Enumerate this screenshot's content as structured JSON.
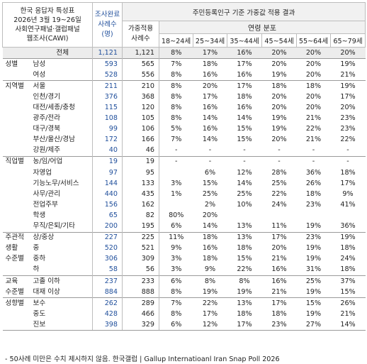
{
  "header": {
    "survey_lines": [
      "한국 응답자 특성표",
      "2026년 3월 19~26일",
      "사회연구패널·갤럽패널",
      "웹조사(CAWI)"
    ],
    "n_lines": [
      "조사완료",
      "사례수",
      "(명)"
    ],
    "weighted_lines": [
      "가중적용",
      "사례수"
    ],
    "title": "주민등록인구 기준 가중값 적용 결과",
    "subtitle": "연령 분포",
    "age_groups": [
      "18~24세",
      "25~34세",
      "35~44세",
      "45~54세",
      "55~64세",
      "65~79세"
    ]
  },
  "rows": [
    {
      "g": "",
      "s": "전체",
      "n": "1,121",
      "w": "1,121",
      "p": [
        "8%",
        "17%",
        "16%",
        "20%",
        "20%",
        "20%"
      ]
    },
    {
      "g": "성별",
      "s": "남성",
      "n": "593",
      "w": "565",
      "p": [
        "7%",
        "18%",
        "17%",
        "20%",
        "20%",
        "19%"
      ]
    },
    {
      "g": "",
      "s": "여성",
      "n": "528",
      "w": "556",
      "p": [
        "8%",
        "16%",
        "16%",
        "19%",
        "20%",
        "21%"
      ]
    },
    {
      "g": "지역별",
      "s": "서울",
      "n": "211",
      "w": "210",
      "p": [
        "8%",
        "20%",
        "17%",
        "18%",
        "18%",
        "19%"
      ]
    },
    {
      "g": "",
      "s": "인천/경기",
      "n": "376",
      "w": "368",
      "p": [
        "8%",
        "17%",
        "18%",
        "20%",
        "20%",
        "17%"
      ]
    },
    {
      "g": "",
      "s": "대전/세종/충청",
      "n": "115",
      "w": "120",
      "p": [
        "8%",
        "16%",
        "16%",
        "20%",
        "20%",
        "20%"
      ]
    },
    {
      "g": "",
      "s": "광주/전라",
      "n": "108",
      "w": "105",
      "p": [
        "8%",
        "14%",
        "14%",
        "19%",
        "21%",
        "23%"
      ]
    },
    {
      "g": "",
      "s": "대구/경북",
      "n": "99",
      "w": "106",
      "p": [
        "5%",
        "16%",
        "15%",
        "19%",
        "22%",
        "23%"
      ]
    },
    {
      "g": "",
      "s": "부산/울산/경남",
      "n": "172",
      "w": "166",
      "p": [
        "7%",
        "14%",
        "15%",
        "20%",
        "21%",
        "22%"
      ]
    },
    {
      "g": "",
      "s": "강원/제주",
      "n": "40",
      "w": "46",
      "p": [
        "-",
        "-",
        "-",
        "-",
        "-",
        "-"
      ]
    },
    {
      "g": "직업별",
      "s": "농/임/어업",
      "n": "19",
      "w": "19",
      "p": [
        "-",
        "-",
        "-",
        "-",
        "-",
        "-"
      ]
    },
    {
      "g": "",
      "s": "자영업",
      "n": "97",
      "w": "95",
      "p": [
        "",
        "6%",
        "12%",
        "28%",
        "36%",
        "18%"
      ]
    },
    {
      "g": "",
      "s": "기능노무/서비스",
      "n": "144",
      "w": "133",
      "p": [
        "3%",
        "15%",
        "14%",
        "25%",
        "26%",
        "17%"
      ]
    },
    {
      "g": "",
      "s": "사무/관리",
      "n": "440",
      "w": "435",
      "p": [
        "1%",
        "25%",
        "25%",
        "22%",
        "18%",
        "9%"
      ]
    },
    {
      "g": "",
      "s": "전업주부",
      "n": "156",
      "w": "162",
      "p": [
        "",
        "2%",
        "10%",
        "24%",
        "23%",
        "41%"
      ]
    },
    {
      "g": "",
      "s": "학생",
      "n": "65",
      "w": "82",
      "p": [
        "80%",
        "20%",
        "",
        "",
        "",
        ""
      ]
    },
    {
      "g": "",
      "s": "무직/은퇴/기타",
      "n": "200",
      "w": "195",
      "p": [
        "6%",
        "14%",
        "13%",
        "11%",
        "19%",
        "36%"
      ]
    },
    {
      "g": "주관적",
      "s": "상/중상",
      "n": "227",
      "w": "225",
      "p": [
        "11%",
        "18%",
        "13%",
        "17%",
        "23%",
        "19%"
      ]
    },
    {
      "g": "생활",
      "s": "중",
      "n": "520",
      "w": "521",
      "p": [
        "9%",
        "16%",
        "18%",
        "20%",
        "19%",
        "18%"
      ]
    },
    {
      "g": "수준별",
      "s": "중하",
      "n": "306",
      "w": "309",
      "p": [
        "3%",
        "18%",
        "15%",
        "21%",
        "19%",
        "24%"
      ]
    },
    {
      "g": "",
      "s": "하",
      "n": "58",
      "w": "56",
      "p": [
        "3%",
        "9%",
        "22%",
        "16%",
        "31%",
        "18%"
      ]
    },
    {
      "g": "교육",
      "s": "고졸 이하",
      "n": "237",
      "w": "233",
      "p": [
        "6%",
        "8%",
        "8%",
        "16%",
        "25%",
        "37%"
      ]
    },
    {
      "g": "수준별",
      "s": "대재 이상",
      "n": "884",
      "w": "888",
      "p": [
        "8%",
        "19%",
        "19%",
        "21%",
        "19%",
        "15%"
      ]
    },
    {
      "g": "성향별",
      "s": "보수",
      "n": "262",
      "w": "289",
      "p": [
        "7%",
        "22%",
        "13%",
        "17%",
        "15%",
        "26%"
      ]
    },
    {
      "g": "",
      "s": "중도",
      "n": "428",
      "w": "466",
      "p": [
        "8%",
        "17%",
        "18%",
        "18%",
        "19%",
        "21%"
      ]
    },
    {
      "g": "",
      "s": "진보",
      "n": "398",
      "w": "329",
      "p": [
        "6%",
        "12%",
        "17%",
        "23%",
        "27%",
        "14%"
      ]
    }
  ],
  "footnote": "- 50사례 미만은 수치 제시하지 않음. 한국갤럽 | Gallup Internatioanl Iran Snap Poll 2026"
}
